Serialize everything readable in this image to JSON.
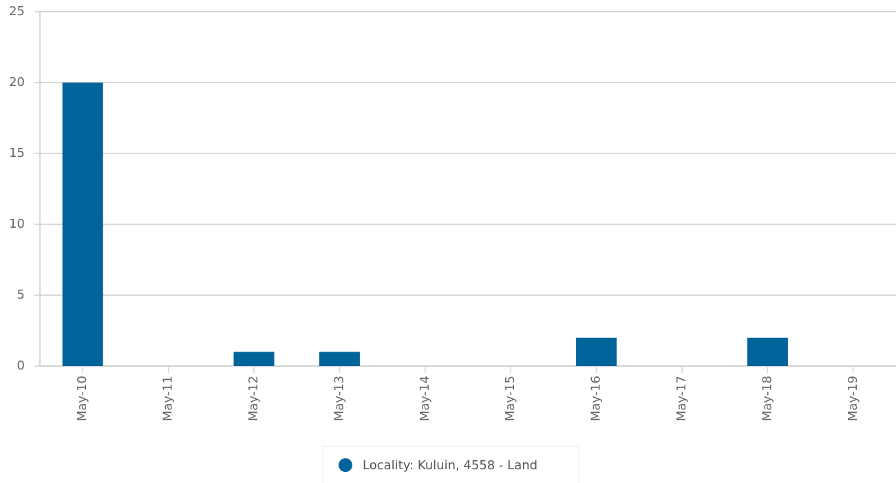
{
  "chart_data": {
    "type": "bar",
    "categories": [
      "May-10",
      "May-11",
      "May-12",
      "May-13",
      "May-14",
      "May-15",
      "May-16",
      "May-17",
      "May-18",
      "May-19"
    ],
    "series": [
      {
        "name": "Locality: Kuluin, 4558 - Land",
        "color": "#00649a",
        "values": [
          20,
          0,
          1,
          1,
          0,
          0,
          2,
          0,
          2,
          0
        ]
      }
    ],
    "ylim": [
      0,
      25
    ],
    "yticks": [
      0,
      5,
      10,
      15,
      20,
      25
    ],
    "grid": true,
    "legend": "bottom"
  }
}
